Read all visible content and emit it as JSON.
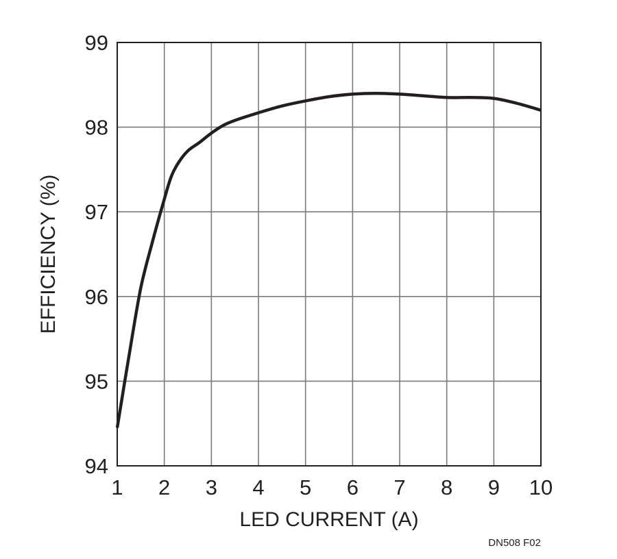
{
  "chart_data": {
    "type": "line",
    "title": "",
    "xlabel": "LED CURRENT (A)",
    "ylabel": "EFFICIENCY (%)",
    "xlim": [
      1,
      10
    ],
    "ylim": [
      94,
      99
    ],
    "x_ticks": [
      1,
      2,
      3,
      4,
      5,
      6,
      7,
      8,
      9,
      10
    ],
    "y_ticks": [
      94,
      95,
      96,
      97,
      98,
      99
    ],
    "grid": true,
    "legend": "none",
    "series": [
      {
        "color": "#231f20",
        "x": [
          1.0,
          1.25,
          1.5,
          1.75,
          2.0,
          2.15,
          2.3,
          2.5,
          2.75,
          3.0,
          3.25,
          3.5,
          4.0,
          4.5,
          5.0,
          5.5,
          6.0,
          6.5,
          7.0,
          7.5,
          8.0,
          8.5,
          9.0,
          9.5,
          10.0
        ],
        "y": [
          94.45,
          95.3,
          96.1,
          96.65,
          97.15,
          97.42,
          97.58,
          97.72,
          97.82,
          97.93,
          98.02,
          98.08,
          98.17,
          98.25,
          98.31,
          98.36,
          98.39,
          98.4,
          98.39,
          98.37,
          98.35,
          98.35,
          98.34,
          98.28,
          98.2
        ]
      }
    ],
    "figure_id": "DN508 F02"
  }
}
